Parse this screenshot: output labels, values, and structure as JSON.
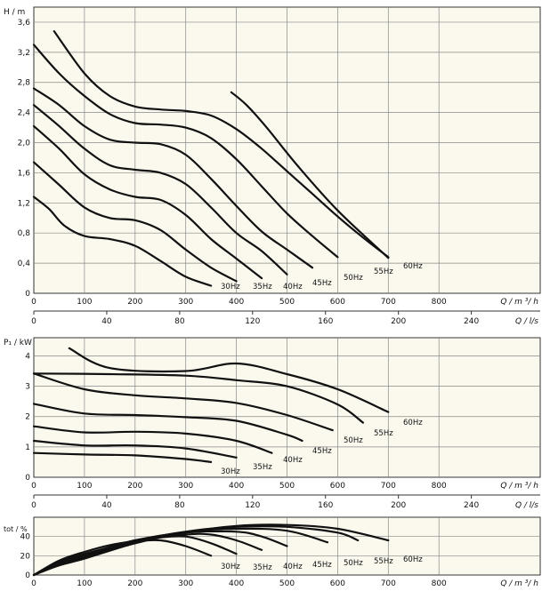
{
  "chart_data": [
    {
      "id": "head",
      "type": "line",
      "ylabel": "H / m",
      "xlabel": "Q / m ³/ h",
      "xlabel2": "Q / l/s",
      "xlim": [
        0,
        1000
      ],
      "ylim": [
        0,
        3.8
      ],
      "xticks": [
        0,
        100,
        200,
        300,
        400,
        500,
        600,
        700,
        800
      ],
      "xtick_labels": [
        "0",
        "100",
        "200",
        "300",
        "400",
        "500",
        "600",
        "700",
        "800"
      ],
      "yticks": [
        0,
        0.4,
        0.8,
        1.2,
        1.6,
        2.0,
        2.4,
        2.8,
        3.2,
        3.6
      ],
      "ytick_labels": [
        "0",
        "0,4",
        "0,8",
        "1,2",
        "1,6",
        "2,0",
        "2,4",
        "2,8",
        "3,2",
        "3,6"
      ],
      "grid": true,
      "series": [
        {
          "name": "30Hz",
          "x": [
            0,
            30,
            60,
            100,
            150,
            200,
            250,
            300,
            350
          ],
          "y": [
            1.28,
            1.12,
            0.9,
            0.76,
            0.72,
            0.63,
            0.43,
            0.22,
            0.1
          ]
        },
        {
          "name": "35Hz",
          "x": [
            0,
            50,
            100,
            150,
            200,
            250,
            300,
            350,
            400
          ],
          "y": [
            1.74,
            1.44,
            1.14,
            1.0,
            0.97,
            0.84,
            0.58,
            0.34,
            0.16
          ]
        },
        {
          "name": "40Hz",
          "x": [
            0,
            50,
            100,
            150,
            200,
            250,
            300,
            350,
            400,
            450
          ],
          "y": [
            2.22,
            1.92,
            1.58,
            1.38,
            1.28,
            1.24,
            1.04,
            0.72,
            0.46,
            0.2
          ]
        },
        {
          "name": "45Hz",
          "x": [
            0,
            50,
            100,
            150,
            200,
            250,
            300,
            350,
            400,
            450,
            500
          ],
          "y": [
            2.5,
            2.22,
            1.92,
            1.7,
            1.64,
            1.6,
            1.45,
            1.14,
            0.8,
            0.56,
            0.25
          ]
        },
        {
          "name": "50Hz",
          "x": [
            0,
            50,
            100,
            150,
            200,
            250,
            300,
            350,
            400,
            450,
            500,
            550
          ],
          "y": [
            2.72,
            2.5,
            2.22,
            2.04,
            2.0,
            1.98,
            1.84,
            1.52,
            1.16,
            0.82,
            0.58,
            0.34
          ]
        },
        {
          "name": "55Hz",
          "x": [
            0,
            50,
            100,
            150,
            200,
            250,
            300,
            350,
            400,
            450,
            500,
            550,
            600
          ],
          "y": [
            3.3,
            2.92,
            2.62,
            2.38,
            2.26,
            2.24,
            2.2,
            2.06,
            1.78,
            1.42,
            1.06,
            0.76,
            0.48
          ]
        },
        {
          "name": "60Hz",
          "x": [
            40,
            100,
            150,
            200,
            250,
            300,
            350,
            400,
            450,
            500,
            550,
            600,
            650,
            700
          ],
          "y": [
            3.48,
            2.92,
            2.62,
            2.48,
            2.44,
            2.42,
            2.36,
            2.18,
            1.92,
            1.62,
            1.32,
            1.02,
            0.74,
            0.48
          ]
        },
        {
          "name": "",
          "x": [
            390,
            420,
            460,
            520,
            600,
            700
          ],
          "y": [
            2.67,
            2.5,
            2.2,
            1.7,
            1.1,
            0.47
          ]
        }
      ]
    },
    {
      "id": "power",
      "type": "line",
      "ylabel": "P₁ / kW",
      "xlabel": "Q / m ³/ h",
      "xlabel2": "Q / l/s",
      "xlim": [
        0,
        1000
      ],
      "ylim": [
        0,
        4.6
      ],
      "xticks": [
        0,
        100,
        200,
        300,
        400,
        500,
        600,
        700,
        800
      ],
      "xtick_labels": [
        "0",
        "100",
        "200",
        "300",
        "400",
        "500",
        "600",
        "700",
        "800"
      ],
      "yticks": [
        0,
        1,
        2,
        3,
        4
      ],
      "ytick_labels": [
        "0",
        "1",
        "2",
        "3",
        "4"
      ],
      "grid": true,
      "series": [
        {
          "name": "30Hz",
          "x": [
            0,
            100,
            200,
            300,
            350
          ],
          "y": [
            0.8,
            0.75,
            0.72,
            0.6,
            0.5
          ]
        },
        {
          "name": "35Hz",
          "x": [
            0,
            100,
            200,
            300,
            400
          ],
          "y": [
            1.2,
            1.05,
            1.05,
            0.95,
            0.65
          ]
        },
        {
          "name": "40Hz",
          "x": [
            0,
            100,
            200,
            300,
            400,
            470
          ],
          "y": [
            1.68,
            1.48,
            1.5,
            1.44,
            1.2,
            0.8
          ]
        },
        {
          "name": "45Hz",
          "x": [
            0,
            100,
            200,
            300,
            400,
            500,
            530
          ],
          "y": [
            2.42,
            2.1,
            2.05,
            1.98,
            1.86,
            1.4,
            1.2
          ]
        },
        {
          "name": "50Hz",
          "x": [
            0,
            100,
            200,
            300,
            400,
            500,
            590
          ],
          "y": [
            3.42,
            2.9,
            2.7,
            2.6,
            2.45,
            2.05,
            1.55
          ]
        },
        {
          "name": "55Hz",
          "x": [
            0,
            150,
            300,
            400,
            500,
            600,
            650
          ],
          "y": [
            3.42,
            3.4,
            3.35,
            3.2,
            3.0,
            2.4,
            1.8
          ]
        },
        {
          "name": "60Hz",
          "x": [
            70,
            150,
            300,
            400,
            500,
            600,
            700
          ],
          "y": [
            4.25,
            3.6,
            3.5,
            3.75,
            3.4,
            2.9,
            2.15
          ]
        }
      ]
    },
    {
      "id": "efficiency",
      "type": "line",
      "ylabel": "tot / %",
      "xlabel": "Q / m ³/ h",
      "xlim": [
        0,
        1000
      ],
      "ylim": [
        0,
        60
      ],
      "xticks": [
        0,
        100,
        200,
        300,
        400,
        500,
        600,
        700,
        800
      ],
      "xtick_labels": [
        "0",
        "100",
        "200",
        "300",
        "400",
        "500",
        "600",
        "700",
        "800"
      ],
      "yticks": [
        0,
        20,
        40
      ],
      "ytick_labels": [
        "0",
        "20",
        "40"
      ],
      "grid": true,
      "series": [
        {
          "name": "30Hz",
          "x": [
            0,
            50,
            100,
            150,
            200,
            250,
            300,
            350
          ],
          "y": [
            0,
            15,
            24,
            31,
            35,
            36,
            30,
            20
          ]
        },
        {
          "name": "35Hz",
          "x": [
            0,
            50,
            100,
            200,
            250,
            300,
            350,
            400
          ],
          "y": [
            0,
            14,
            22,
            35,
            39,
            40,
            33,
            22
          ]
        },
        {
          "name": "40Hz",
          "x": [
            0,
            50,
            100,
            200,
            300,
            350,
            400,
            450
          ],
          "y": [
            0,
            13,
            21,
            36,
            42,
            42,
            36,
            26
          ]
        },
        {
          "name": "45Hz",
          "x": [
            0,
            50,
            100,
            200,
            300,
            400,
            450,
            500
          ],
          "y": [
            0,
            12,
            20,
            36,
            44,
            45,
            40,
            30
          ]
        },
        {
          "name": "50Hz",
          "x": [
            0,
            50,
            100,
            200,
            300,
            400,
            500,
            580
          ],
          "y": [
            0,
            12,
            19,
            35,
            45,
            48,
            46,
            34
          ]
        },
        {
          "name": "55Hz",
          "x": [
            0,
            50,
            100,
            200,
            300,
            400,
            500,
            600,
            640
          ],
          "y": [
            0,
            11,
            18,
            34,
            45,
            50,
            50,
            44,
            36
          ]
        },
        {
          "name": "60Hz",
          "x": [
            0,
            50,
            100,
            200,
            300,
            400,
            500,
            600,
            700
          ],
          "y": [
            0,
            10,
            17,
            33,
            44,
            51,
            52,
            48,
            36
          ]
        }
      ]
    }
  ],
  "top_secondary_axis": {
    "ticks": [
      0,
      40,
      80,
      120,
      160,
      200,
      240
    ],
    "tick_labels": [
      "0",
      "40",
      "80",
      "120",
      "160",
      "200",
      "240"
    ]
  },
  "mid_secondary_axis": {
    "ticks": [
      0,
      40,
      80,
      120,
      160,
      200,
      240
    ],
    "tick_labels": [
      "0",
      "40",
      "80",
      "120",
      "160",
      "200",
      "240"
    ]
  },
  "colors": {
    "line": "#111111",
    "plot_bg": "#fbf9ee",
    "grid": "#888888"
  }
}
